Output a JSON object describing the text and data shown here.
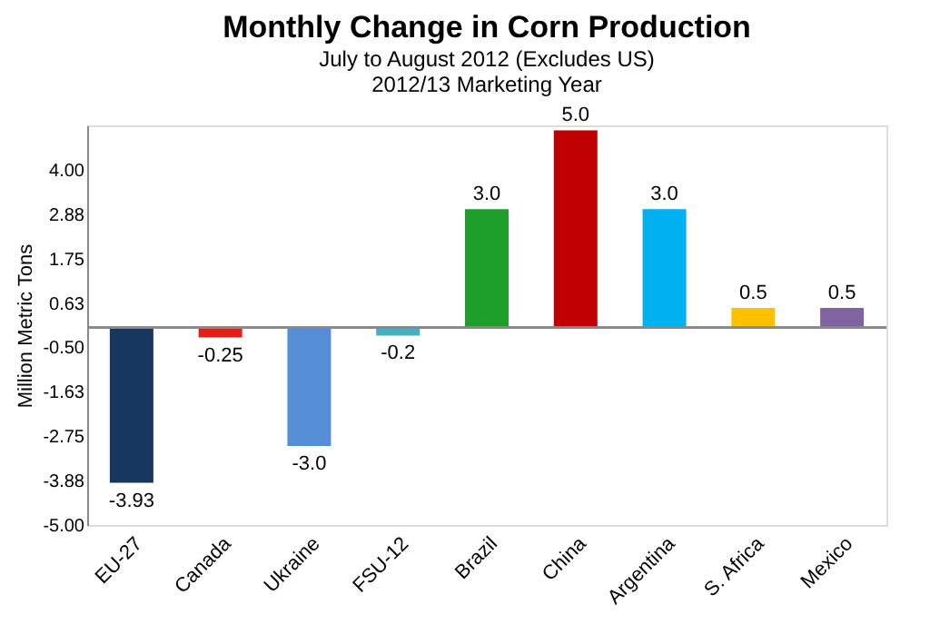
{
  "chart_data": {
    "type": "bar",
    "title": "Monthly Change in Corn Production",
    "subtitle": "July to August 2012 (Excludes US)",
    "annotations": [
      "2012/13 Marketing Year"
    ],
    "ylabel": "Million Metric Tons",
    "categories": [
      "EU-27",
      "Canada",
      "Ukraine",
      "FSU-12",
      "Brazil",
      "China",
      "Argentina",
      "S. Africa",
      "Mexico"
    ],
    "values": [
      -3.93,
      -0.25,
      -3.0,
      -0.2,
      3.0,
      5.0,
      3.0,
      0.5,
      0.5
    ],
    "value_labels": [
      "-3.93",
      "-0.25",
      "-3.0",
      "-0.2",
      "3.0",
      "5.0",
      "3.0",
      "0.5",
      "0.5"
    ],
    "colors": [
      "#17375e",
      "#e0201b",
      "#558ed5",
      "#4bacc6",
      "#1e9e2b",
      "#c00000",
      "#00b0f0",
      "#ffc000",
      "#8064a2"
    ],
    "ylim": [
      -5.0,
      5.125
    ],
    "yticks": [
      {
        "value": -5.0,
        "label": "-5.00"
      },
      {
        "value": -3.875,
        "label": "-3.88"
      },
      {
        "value": -2.75,
        "label": "-2.75"
      },
      {
        "value": -1.625,
        "label": "-1.63"
      },
      {
        "value": -0.5,
        "label": "-0.50"
      },
      {
        "value": 0.625,
        "label": "0.63"
      },
      {
        "value": 1.75,
        "label": "1.75"
      },
      {
        "value": 2.875,
        "label": "2.88"
      },
      {
        "value": 4.0,
        "label": "4.00"
      }
    ],
    "grid": false
  }
}
